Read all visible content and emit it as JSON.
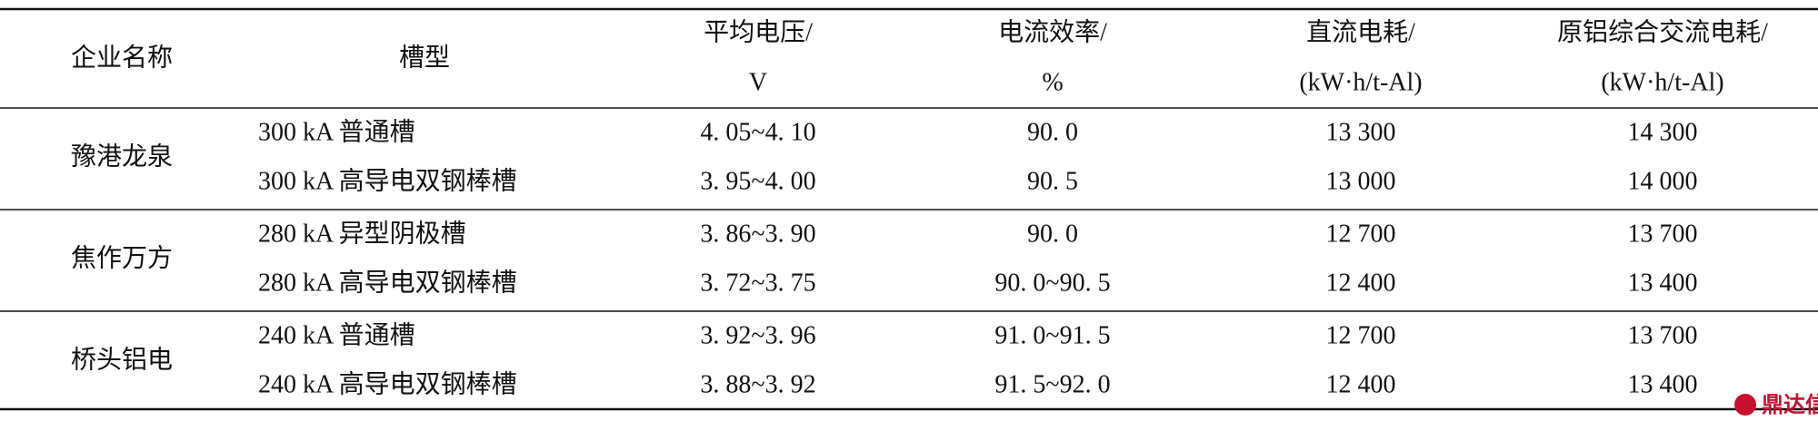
{
  "table": {
    "header": [
      [
        "企业名称"
      ],
      [
        "槽型"
      ],
      [
        "平均电压/",
        "V"
      ],
      [
        "电流效率/",
        "%"
      ],
      [
        "直流电耗/",
        "(kW·h/t-Al)"
      ],
      [
        "原铝综合交流电耗/",
        "(kW·h/t-Al)"
      ]
    ],
    "groups": [
      {
        "company": "豫港龙泉",
        "rows": [
          [
            "300 kA 普通槽",
            "4. 05~4. 10",
            "90. 0",
            "13 300",
            "14 300"
          ],
          [
            "300 kA 高导电双钢棒槽",
            "3. 95~4. 00",
            "90. 5",
            "13 000",
            "14 000"
          ]
        ]
      },
      {
        "company": "焦作万方",
        "rows": [
          [
            "280 kA 异型阴极槽",
            "3. 86~3. 90",
            "90. 0",
            "12 700",
            "13 700"
          ],
          [
            "280 kA 高导电双钢棒槽",
            "3. 72~3. 75",
            "90. 0~90. 5",
            "12 400",
            "13 400"
          ]
        ]
      },
      {
        "company": "桥头铝电",
        "rows": [
          [
            "240 kA 普通槽",
            "3. 92~3. 96",
            "91. 0~91. 5",
            "12 700",
            "13 700"
          ],
          [
            "240 kA 高导电双钢棒槽",
            "3. 88~3. 92",
            "91. 5~92. 0",
            "12 400",
            "13 400"
          ]
        ]
      }
    ],
    "watermark": "鼎达信"
  }
}
